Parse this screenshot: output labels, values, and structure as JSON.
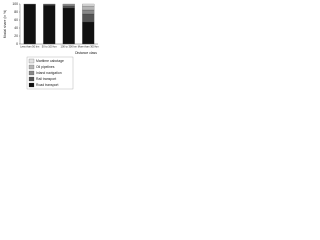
{
  "chart_data": {
    "type": "stacked_bar",
    "y_label": "Modal share (in %)",
    "x_label": "Distance class",
    "categories": [
      "Less than 50 km",
      "50 to 100 km",
      "100 to 300 km",
      "More than 300 km"
    ],
    "series": [
      {
        "name": "Road transport",
        "color": "#111111",
        "values": [
          99,
          97,
          90,
          55
        ]
      },
      {
        "name": "Rail transport",
        "color": "#555555",
        "values": [
          1,
          2,
          5,
          20
        ]
      },
      {
        "name": "Inland navigation",
        "color": "#888888",
        "values": [
          0,
          1,
          3,
          10
        ]
      },
      {
        "name": "Oil pipelines",
        "color": "#b5b5b5",
        "values": [
          0,
          0,
          2,
          10
        ]
      },
      {
        "name": "Maritime cabotage",
        "color": "#e2e2e2",
        "values": [
          0,
          0,
          0,
          5
        ]
      }
    ],
    "ylim": [
      0,
      100
    ],
    "yticks": [
      0,
      20,
      40,
      60,
      80,
      100
    ],
    "grid": false
  }
}
